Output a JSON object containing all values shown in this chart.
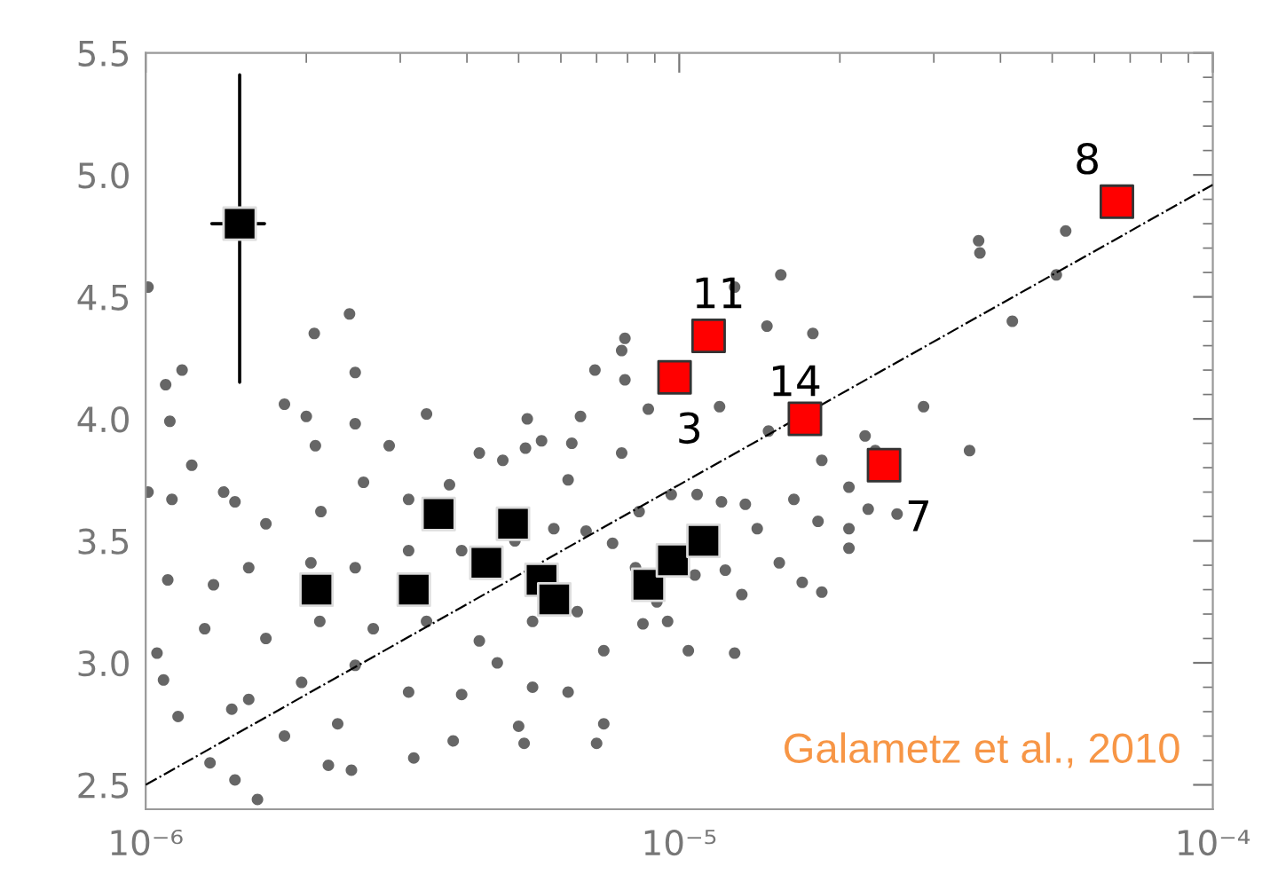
{
  "chart_data": {
    "type": "scatter",
    "log": "x",
    "xlim": [
      1e-06,
      0.0001
    ],
    "ylim": [
      2.4,
      5.5
    ],
    "xticks": [
      {
        "value": 1e-06,
        "label": "10⁻⁶"
      },
      {
        "value": 1e-05,
        "label": "10⁻⁵"
      },
      {
        "value": 0.0001,
        "label": "10⁻⁴"
      }
    ],
    "yticks": [
      {
        "value": 2.5,
        "label": "2.5"
      },
      {
        "value": 3.0,
        "label": "3.0"
      },
      {
        "value": 3.5,
        "label": "3.5"
      },
      {
        "value": 4.0,
        "label": "4.0"
      },
      {
        "value": 4.5,
        "label": "4.5"
      },
      {
        "value": 5.0,
        "label": "5.0"
      },
      {
        "value": 5.5,
        "label": "5.5"
      }
    ],
    "grid": false,
    "legend": false,
    "series": [
      {
        "marker": "circle",
        "color": "#666666",
        "x": [
          1.01e-06,
          1.09e-06,
          1.11e-06,
          1.17e-06,
          1.82e-06,
          2e-06,
          2.08e-06,
          2.07e-06,
          2.41e-06,
          2.47e-06,
          2.47e-06,
          2.86e-06,
          3.36e-06,
          5.19e-06,
          5.52e-06,
          6.53e-06,
          6.95e-06,
          7.8e-06,
          7.91e-06,
          7.91e-06,
          1.27e-05,
          1.55e-05,
          1.46e-05,
          1.78e-05,
          1.19e-05,
          8.75e-06,
          1.47e-05,
          2.23e-05,
          3.66e-05,
          3.64e-05,
          5.3e-05,
          5.09e-05,
          4.21e-05,
          2.87e-05,
          2.33e-05,
          3.5e-05,
          1.22e-06,
          1.4e-06,
          1.01e-06,
          1.12e-06,
          1.47e-06,
          1.68e-06,
          2.13e-06,
          2.56e-06,
          3.11e-06,
          3.71e-06,
          4.22e-06,
          4.67e-06,
          5.15e-06,
          6.19e-06,
          6.29e-06,
          1.1e-06,
          1.05e-06,
          1.08e-06,
          1.15e-06,
          1.32e-06,
          1.47e-06,
          1.62e-06,
          2.43e-06,
          2.2e-06,
          3.18e-06,
          3.77e-06,
          5.12e-06,
          7e-06,
          7.22e-06,
          5.31e-06,
          4.56e-06,
          3.91e-06,
          3.11e-06,
          2.47e-06,
          1.96e-06,
          1.56e-06,
          1.68e-06,
          2.12e-06,
          2.67e-06,
          3.36e-06,
          4.22e-06,
          5.31e-06,
          6.44e-06,
          7.22e-06,
          6.19e-06,
          5e-06,
          2.29e-06,
          1.82e-06,
          1.45e-06,
          1.29e-06,
          1.34e-06,
          1.56e-06,
          2.04e-06,
          2.47e-06,
          3.11e-06,
          3.91e-06,
          4.92e-06,
          5.82e-06,
          6.69e-06,
          7.5e-06,
          8.28e-06,
          9.08e-06,
          9.51e-06,
          8.41e-06,
          9.66e-06,
          7.8e-06,
          1.08e-05,
          1.2e-05,
          1.07e-05,
          1.22e-05,
          1.33e-05,
          1.4e-05,
          1.31e-05,
          1.54e-05,
          1.64e-05,
          1.7e-05,
          1.85e-05,
          2.08e-05,
          2.08e-05,
          2.08e-05,
          1.82e-05,
          1.85e-05,
          2.26e-05,
          1.27e-05,
          1.04e-05,
          2.56e-05,
          8.55e-06
        ],
        "values": [
          4.54,
          4.14,
          3.99,
          4.2,
          4.06,
          4.01,
          3.89,
          4.35,
          4.43,
          4.19,
          3.98,
          3.89,
          4.02,
          4.0,
          3.91,
          4.01,
          4.2,
          4.28,
          4.33,
          4.16,
          4.54,
          4.59,
          4.38,
          4.35,
          4.05,
          4.04,
          3.95,
          3.93,
          4.68,
          4.73,
          4.77,
          4.59,
          4.4,
          4.05,
          3.87,
          3.87,
          3.81,
          3.7,
          3.7,
          3.67,
          3.66,
          3.57,
          3.62,
          3.74,
          3.67,
          3.73,
          3.86,
          3.83,
          3.88,
          3.75,
          3.9,
          3.34,
          3.04,
          2.93,
          2.78,
          2.59,
          2.52,
          2.44,
          2.56,
          2.58,
          2.61,
          2.68,
          2.67,
          2.67,
          2.75,
          2.9,
          3.0,
          2.87,
          2.88,
          2.99,
          2.92,
          2.85,
          3.1,
          3.17,
          3.14,
          3.17,
          3.09,
          3.17,
          3.21,
          3.05,
          2.88,
          2.74,
          2.75,
          2.7,
          2.81,
          3.14,
          3.32,
          3.39,
          3.41,
          3.39,
          3.46,
          3.46,
          3.5,
          3.55,
          3.54,
          3.49,
          3.39,
          3.25,
          3.17,
          3.62,
          3.69,
          3.86,
          3.69,
          3.66,
          3.36,
          3.38,
          3.65,
          3.55,
          3.28,
          3.41,
          3.67,
          3.33,
          3.29,
          3.72,
          3.55,
          3.47,
          3.58,
          3.83,
          3.63,
          3.04,
          3.05,
          3.61,
          3.16
        ]
      },
      {
        "type": "line",
        "line_style": "dashdot",
        "marker": "none",
        "color": "#000000",
        "x": [
          1e-06,
          0.0001
        ],
        "values": [
          2.5,
          4.96
        ]
      },
      {
        "marker": "square",
        "color": "#000000",
        "x": [
          2.09e-06,
          3.18e-06,
          3.54e-06,
          4.35e-06,
          4.88e-06,
          5.52e-06,
          5.83e-06,
          8.75e-06,
          9.73e-06,
          1.11e-05
        ],
        "values": [
          3.3,
          3.3,
          3.61,
          3.41,
          3.57,
          3.34,
          3.26,
          3.32,
          3.42,
          3.5
        ]
      },
      {
        "marker": "square",
        "color": "#000000",
        "x": [
          1.5e-06
        ],
        "values": [
          4.8
        ],
        "errors": [
          [
            4.15,
            5.41
          ]
        ],
        "xerrors": [
          [
            1.33e-06,
            1.67e-06
          ]
        ]
      },
      {
        "marker": "square",
        "color": "#ff0000",
        "x": [
          9.8e-06,
          1.135e-05,
          1.72e-05,
          2.42e-05,
          6.61e-05
        ],
        "values": [
          4.17,
          4.34,
          4.0,
          3.81,
          4.89
        ]
      }
    ],
    "annotations": [
      {
        "text": "3",
        "x": 9.8e-06,
        "y": 4.17
      },
      {
        "text": "11",
        "x": 1.135e-05,
        "y": 4.34
      },
      {
        "text": "14",
        "x": 1.72e-05,
        "y": 4.0
      },
      {
        "text": "7",
        "x": 2.42e-05,
        "y": 3.81
      },
      {
        "text": "8",
        "x": 6.61e-05,
        "y": 4.89
      },
      "Galametz et al., 2010"
    ]
  }
}
